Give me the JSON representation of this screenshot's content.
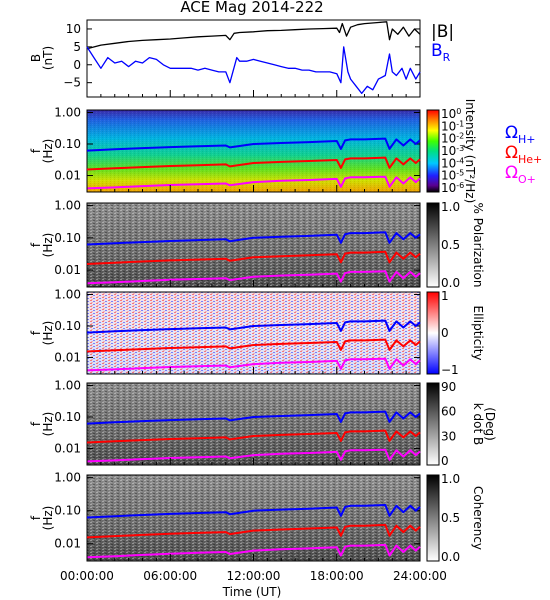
{
  "chart_data": {
    "title": "ACE Mag 2014-222",
    "time_axis": {
      "label": "Time (UT)",
      "range_hours": [
        0,
        24
      ],
      "ticks": [
        {
          "value": 0,
          "label": "00:00:00"
        },
        {
          "value": 6,
          "label": "06:00:00"
        },
        {
          "value": 12,
          "label": "12:00:00"
        },
        {
          "value": 18,
          "label": "18:00:00"
        },
        {
          "value": 24,
          "label": "24:00:00"
        }
      ]
    },
    "freq_axis": {
      "label_top": "f",
      "label_bottom": "(Hz)",
      "scale": "log",
      "range": [
        0.003,
        1.2
      ],
      "ticks": [
        {
          "value": 1.0,
          "label": "1.00"
        },
        {
          "value": 0.1,
          "label": "0.10"
        },
        {
          "value": 0.01,
          "label": "0.01"
        }
      ]
    },
    "gyro_lines": [
      {
        "name": "Ω H+",
        "main": "Ω",
        "sub": "H+",
        "color": "#0000ff",
        "points": [
          [
            0,
            0.062
          ],
          [
            2,
            0.068
          ],
          [
            4,
            0.074
          ],
          [
            6,
            0.08
          ],
          [
            8,
            0.085
          ],
          [
            10,
            0.09
          ],
          [
            10.3,
            0.078
          ],
          [
            12,
            0.1
          ],
          [
            14,
            0.108
          ],
          [
            16,
            0.115
          ],
          [
            18,
            0.125
          ],
          [
            18.3,
            0.07
          ],
          [
            18.6,
            0.13
          ],
          [
            19,
            0.14
          ],
          [
            20,
            0.14
          ],
          [
            21.5,
            0.148
          ],
          [
            21.8,
            0.07
          ],
          [
            22.3,
            0.14
          ],
          [
            22.8,
            0.09
          ],
          [
            23.3,
            0.14
          ],
          [
            23.7,
            0.1
          ],
          [
            24,
            0.13
          ]
        ]
      },
      {
        "name": "Ω He+",
        "main": "Ω",
        "sub": "He+",
        "color": "#ff0000",
        "points": [
          [
            0,
            0.0155
          ],
          [
            2,
            0.017
          ],
          [
            4,
            0.0185
          ],
          [
            6,
            0.02
          ],
          [
            8,
            0.0212
          ],
          [
            10,
            0.0225
          ],
          [
            10.3,
            0.0195
          ],
          [
            12,
            0.025
          ],
          [
            14,
            0.027
          ],
          [
            16,
            0.0288
          ],
          [
            18,
            0.031
          ],
          [
            18.3,
            0.0175
          ],
          [
            18.6,
            0.0325
          ],
          [
            19,
            0.035
          ],
          [
            20,
            0.035
          ],
          [
            21.5,
            0.037
          ],
          [
            21.8,
            0.0175
          ],
          [
            22.3,
            0.035
          ],
          [
            22.8,
            0.0225
          ],
          [
            23.3,
            0.035
          ],
          [
            23.7,
            0.025
          ],
          [
            24,
            0.0325
          ]
        ]
      },
      {
        "name": "Ω O+",
        "main": "Ω",
        "sub": "O+",
        "color": "#ff00ff",
        "points": [
          [
            0,
            0.0039
          ],
          [
            2,
            0.0042
          ],
          [
            4,
            0.0046
          ],
          [
            6,
            0.005
          ],
          [
            8,
            0.0053
          ],
          [
            10,
            0.0056
          ],
          [
            10.3,
            0.0049
          ],
          [
            12,
            0.0062
          ],
          [
            14,
            0.0068
          ],
          [
            16,
            0.0072
          ],
          [
            18,
            0.0078
          ],
          [
            18.3,
            0.0044
          ],
          [
            18.6,
            0.0081
          ],
          [
            19,
            0.0088
          ],
          [
            20,
            0.0088
          ],
          [
            21.5,
            0.0092
          ],
          [
            21.8,
            0.0044
          ],
          [
            22.3,
            0.0088
          ],
          [
            22.8,
            0.0056
          ],
          [
            23.3,
            0.0088
          ],
          [
            23.7,
            0.0062
          ],
          [
            24,
            0.0081
          ]
        ]
      }
    ],
    "b_panel": {
      "type": "line",
      "ylabel_top": "B",
      "ylabel_bottom": "(nT)",
      "ylim": [
        -9,
        12.5
      ],
      "yticks": [
        10,
        5,
        0,
        -5
      ],
      "legend": [
        {
          "label": "|B|",
          "color": "#000000"
        },
        {
          "label": "B",
          "sub": "R",
          "color": "#0000ff"
        }
      ],
      "series": [
        {
          "name": "|B|",
          "color": "#000000",
          "points": [
            [
              0,
              4.5
            ],
            [
              1,
              5.5
            ],
            [
              2,
              6
            ],
            [
              3,
              6.5
            ],
            [
              4,
              6.8
            ],
            [
              5,
              7
            ],
            [
              6,
              7.2
            ],
            [
              7,
              7.5
            ],
            [
              8,
              7.8
            ],
            [
              9,
              8
            ],
            [
              10,
              8.2
            ],
            [
              10.3,
              7
            ],
            [
              10.6,
              8.8
            ],
            [
              11,
              9
            ],
            [
              12,
              9.2
            ],
            [
              13,
              9.5
            ],
            [
              14,
              9.6
            ],
            [
              15,
              9.8
            ],
            [
              16,
              10
            ],
            [
              17,
              10.1
            ],
            [
              18,
              10.2
            ],
            [
              18.2,
              9
            ],
            [
              18.4,
              11.5
            ],
            [
              18.7,
              8
            ],
            [
              19,
              10.5
            ],
            [
              19.5,
              11.2
            ],
            [
              20,
              11.5
            ],
            [
              21,
              11.8
            ],
            [
              21.6,
              12
            ],
            [
              21.8,
              7
            ],
            [
              22,
              10
            ],
            [
              22.4,
              8.5
            ],
            [
              22.8,
              10.5
            ],
            [
              23.2,
              8
            ],
            [
              23.6,
              10
            ],
            [
              24,
              8.5
            ]
          ]
        },
        {
          "name": "B_R",
          "color": "#0000ff",
          "points": [
            [
              0,
              5
            ],
            [
              0.5,
              2
            ],
            [
              1,
              -1
            ],
            [
              1.5,
              2
            ],
            [
              2,
              0.5
            ],
            [
              2.5,
              1
            ],
            [
              3,
              -0.5
            ],
            [
              3.5,
              1
            ],
            [
              4,
              0.5
            ],
            [
              4.5,
              2
            ],
            [
              5,
              1.5
            ],
            [
              5.5,
              0
            ],
            [
              6,
              -1
            ],
            [
              6.5,
              -1
            ],
            [
              7,
              -1
            ],
            [
              7.5,
              -1
            ],
            [
              8,
              -1.5
            ],
            [
              8.5,
              -1
            ],
            [
              9,
              -1.5
            ],
            [
              9.5,
              -2
            ],
            [
              10,
              -2
            ],
            [
              10.3,
              -5
            ],
            [
              10.8,
              2
            ],
            [
              11,
              1
            ],
            [
              11.5,
              1
            ],
            [
              12,
              1.5
            ],
            [
              12.5,
              1
            ],
            [
              13,
              0.5
            ],
            [
              13.5,
              0
            ],
            [
              14,
              -0.5
            ],
            [
              14.5,
              -1
            ],
            [
              15,
              -1
            ],
            [
              15.5,
              -1.5
            ],
            [
              16,
              -1.5
            ],
            [
              16.5,
              -2
            ],
            [
              17,
              -2
            ],
            [
              17.5,
              -2
            ],
            [
              18,
              -2.5
            ],
            [
              18.3,
              -5
            ],
            [
              18.5,
              5
            ],
            [
              18.8,
              -2
            ],
            [
              19,
              -4
            ],
            [
              19.4,
              -6
            ],
            [
              19.8,
              -8
            ],
            [
              20.2,
              -6
            ],
            [
              20.6,
              -7
            ],
            [
              21,
              -4
            ],
            [
              21.5,
              -3
            ],
            [
              21.8,
              3
            ],
            [
              22,
              -2
            ],
            [
              22.3,
              -3
            ],
            [
              22.7,
              -1
            ],
            [
              23,
              -4
            ],
            [
              23.3,
              -1
            ],
            [
              23.7,
              -4
            ],
            [
              24,
              -2
            ]
          ]
        }
      ]
    },
    "spectra_panels": [
      {
        "id": "intensity",
        "cbar_label": "Intensity (nT²/Hz)",
        "cbar_type": "rainbow",
        "cbar_ticks": [
          {
            "text": "10",
            "sup": "0"
          },
          {
            "text": "10",
            "sup": "-1"
          },
          {
            "text": "10",
            "sup": "-2"
          },
          {
            "text": "10",
            "sup": "-3"
          },
          {
            "text": "10",
            "sup": "-4"
          },
          {
            "text": "10",
            "sup": "-5"
          },
          {
            "text": "10",
            "sup": "-6"
          }
        ]
      },
      {
        "id": "polarization",
        "cbar_label": "% Polarization",
        "cbar_type": "gray",
        "cbar_ticks": [
          {
            "text": "1.0"
          },
          {
            "text": "0.5"
          },
          {
            "text": "0.0"
          }
        ]
      },
      {
        "id": "ellipticity",
        "cbar_label": "Ellipticity",
        "cbar_type": "bwr",
        "cbar_ticks": [
          {
            "text": "1"
          },
          {
            "text": "0"
          },
          {
            "text": "−1"
          }
        ]
      },
      {
        "id": "kdotb",
        "cbar_label": "k dot B (Deg)",
        "cbar_label_lines": [
          "k dot B",
          "(Deg)"
        ],
        "cbar_type": "gray",
        "cbar_ticks": [
          {
            "text": "90"
          },
          {
            "text": "60"
          },
          {
            "text": "30"
          },
          {
            "text": "0"
          }
        ]
      },
      {
        "id": "coherency",
        "cbar_label": "Coherency",
        "cbar_type": "gray",
        "cbar_ticks": [
          {
            "text": "1.0"
          },
          {
            "text": "0.5"
          },
          {
            "text": "0.0"
          }
        ]
      }
    ]
  }
}
